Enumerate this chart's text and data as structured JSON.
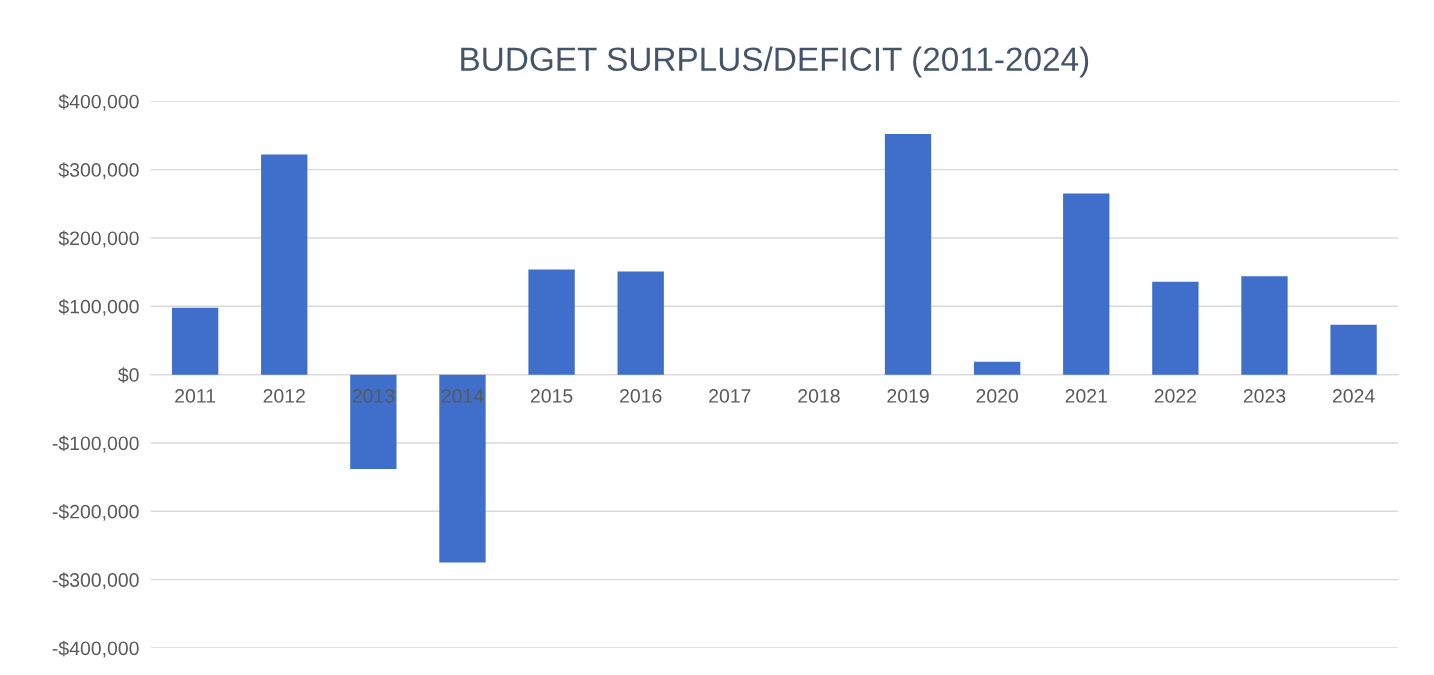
{
  "chart_data": {
    "type": "bar",
    "title": "BUDGET SURPLUS/DEFICIT (2011-2024)",
    "categories": [
      "2011",
      "2012",
      "2013",
      "2014",
      "2015",
      "2016",
      "2017",
      "2018",
      "2019",
      "2020",
      "2021",
      "2022",
      "2023",
      "2024"
    ],
    "values": [
      98000,
      322000,
      -138000,
      -275000,
      154000,
      151000,
      0,
      0,
      352000,
      19000,
      265000,
      136000,
      144000,
      73000
    ],
    "color": "#3f6fcb",
    "ylim": [
      -400000,
      400000
    ],
    "yticks": [
      {
        "value": -400000,
        "label": "-$400,000"
      },
      {
        "value": -300000,
        "label": "-$300,000"
      },
      {
        "value": -200000,
        "label": "-$200,000"
      },
      {
        "value": -100000,
        "label": "-$100,000"
      },
      {
        "value": 0,
        "label": "$0"
      },
      {
        "value": 100000,
        "label": "$100,000"
      },
      {
        "value": 200000,
        "label": "$200,000"
      },
      {
        "value": 300000,
        "label": "$300,000"
      },
      {
        "value": 400000,
        "label": "$400,000"
      }
    ],
    "grid": "y"
  }
}
